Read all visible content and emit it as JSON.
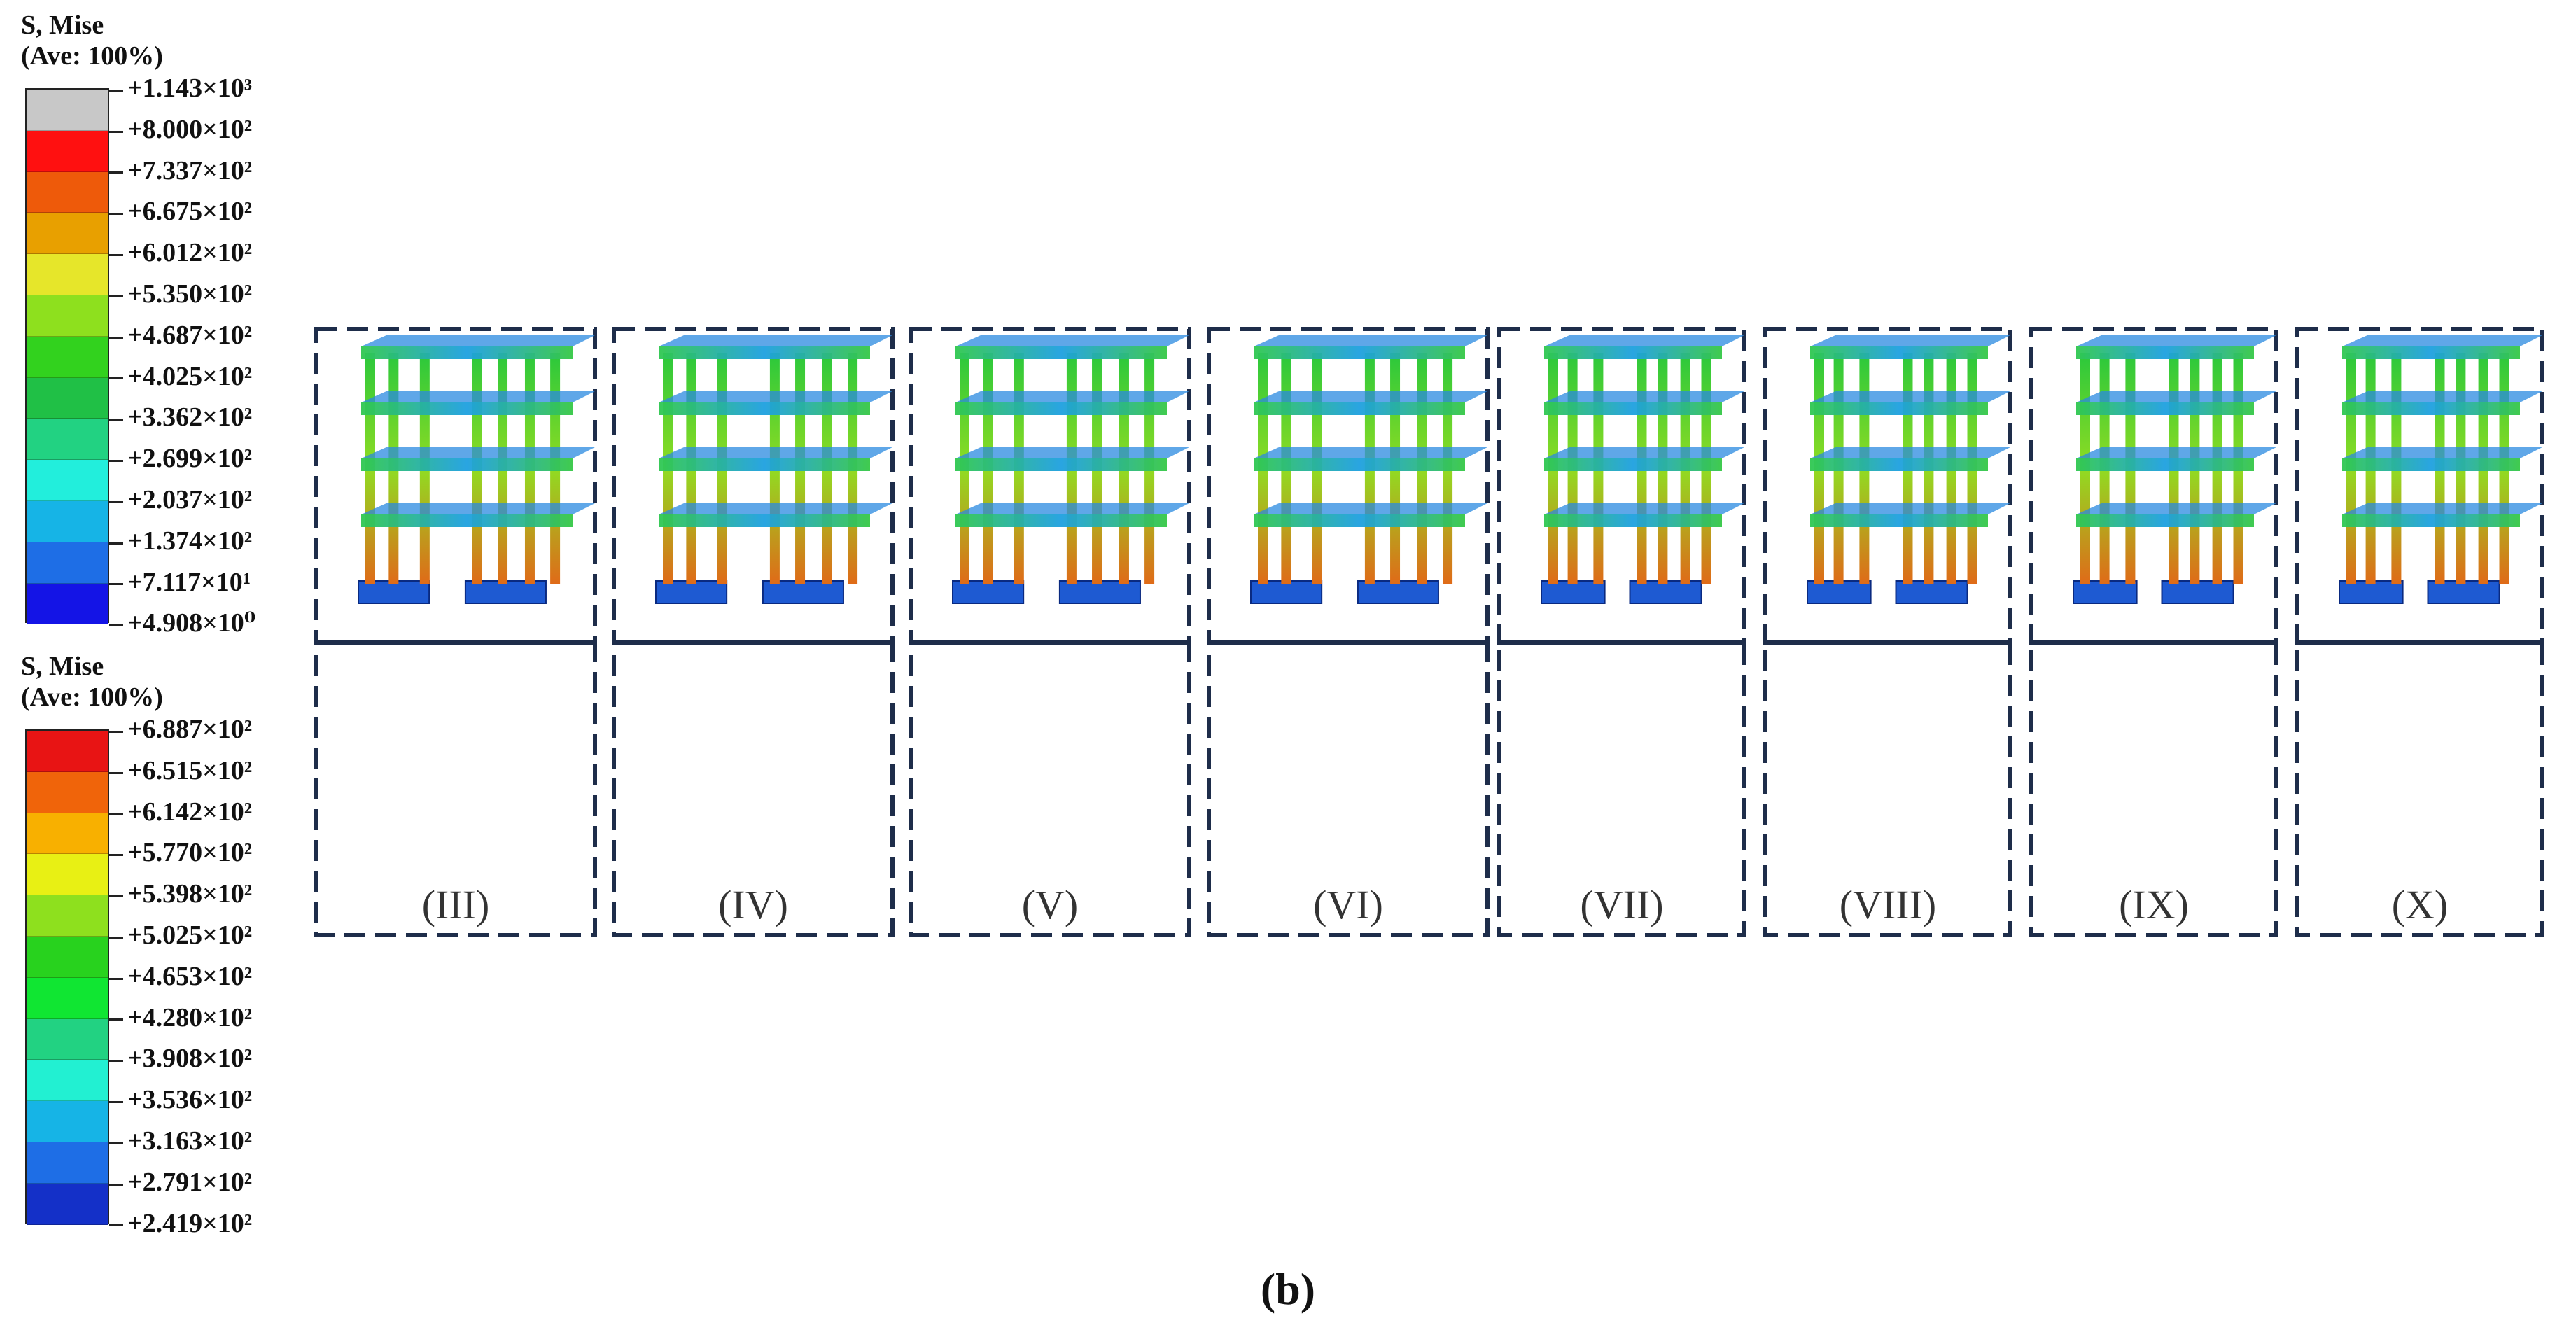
{
  "legend_building": {
    "title_line1": "S, Mise",
    "title_line2": "(Ave:  100%)",
    "ticks": [
      "+1.143×10³",
      "+8.000×10²",
      "+7.337×10²",
      "+6.675×10²",
      "+6.012×10²",
      "+5.350×10²",
      "+4.687×10²",
      "+4.025×10²",
      "+3.362×10²",
      "+2.699×10²",
      "+2.037×10²",
      "+1.374×10²",
      "+7.117×10¹",
      "+4.908×10⁰"
    ],
    "colors": [
      "#c8c8c8",
      "#ff1010",
      "#ee5a0a",
      "#e8a000",
      "#e6e62a",
      "#8ee01e",
      "#32d21e",
      "#20c046",
      "#22d282",
      "#22eedc",
      "#16b4e6",
      "#1e6ee6",
      "#1414e6"
    ]
  },
  "legend_rebar": {
    "title_line1": "S, Mise",
    "title_line2": "(Ave:  100%)",
    "ticks": [
      "+6.887×10²",
      "+6.515×10²",
      "+6.142×10²",
      "+5.770×10²",
      "+5.398×10²",
      "+5.025×10²",
      "+4.653×10²",
      "+4.280×10²",
      "+3.908×10²",
      "+3.536×10²",
      "+3.163×10²",
      "+2.791×10²",
      "+2.419×10²"
    ],
    "colors": [
      "#e81414",
      "#f0640a",
      "#f8b000",
      "#e8f014",
      "#8ee01e",
      "#28d21e",
      "#10e632",
      "#22d282",
      "#22f0d2",
      "#16b4e6",
      "#1e6ee6",
      "#1430c8"
    ]
  },
  "cases": [
    "(III)",
    "(IV)",
    "(V)",
    "(VI)",
    "(VII)",
    "(VIII)",
    "(IX)",
    "(X)"
  ],
  "caption": "(b)"
}
